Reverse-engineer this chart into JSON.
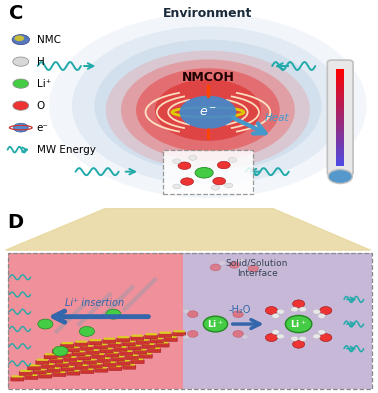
{
  "panel_c_label": "C",
  "panel_d_label": "D",
  "environment_text": "Environment",
  "nmcoh_text": "NMCOH",
  "heat_text": "Heat",
  "solid_solution_text": "Solid/Solution\nInterface",
  "li_insertion_text": "Li⁺ insertion",
  "minus_h2o_text": "-H₂O",
  "mw_energy_text": "MW Energy",
  "legend_items": [
    "NMC",
    "H",
    "Li⁺",
    "O",
    "e⁻"
  ],
  "legend_colors": [
    "#4466cc",
    "#d8d8d8",
    "#44cc44",
    "#ee3333",
    "#5588cc"
  ],
  "bg_color": "#ffffff",
  "env_blue": "#9ab8d8",
  "nmcoh_red": "#f06060",
  "electron_blue": "#4488cc",
  "panel_d_left_color": "#f0909a",
  "panel_d_right_color": "#c8b8d8",
  "thermometer_red": "#dd3333",
  "thermometer_blue": "#5599cc",
  "arrow_blue": "#4499cc",
  "teal_wave": "#22aaaa",
  "connect_tan": "#e8d8a0"
}
